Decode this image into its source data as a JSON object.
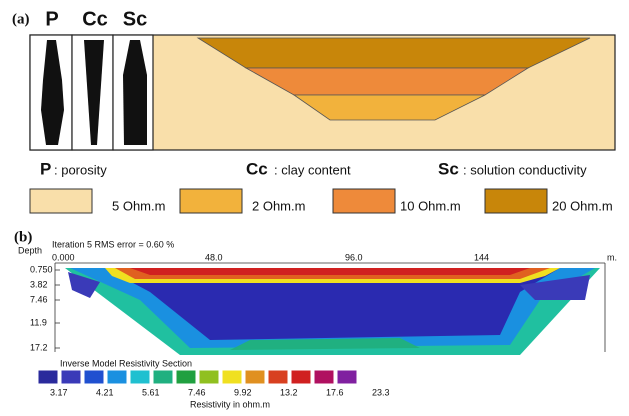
{
  "panel_a": {
    "label": "(a)",
    "columns": [
      "P",
      "Cc",
      "Sc"
    ],
    "captions": [
      {
        "symbol": "P",
        "text": ": porosity"
      },
      {
        "symbol": "Cc",
        "text": ": clay content"
      },
      {
        "symbol": "Sc",
        "text": ": solution conductivity"
      }
    ],
    "legend": [
      "5 Ohm.m",
      "2 Ohm.m",
      "10 Ohm.m",
      "20 Ohm.m"
    ]
  },
  "panel_b": {
    "label": "(b)",
    "depth_label": "Depth",
    "iteration": "Iteration 5 RMS error = 0.60 %",
    "x_ticks": [
      "0.000",
      "48.0",
      "96.0",
      "144"
    ],
    "x_unit": "m.",
    "depths": [
      "0.750",
      "3.82",
      "7.46",
      "11.9",
      "17.2"
    ],
    "section_title": "Inverse Model Resistivity Section",
    "scale_labels": [
      "3.17",
      "4.21",
      "5.61",
      "7.46",
      "9.92",
      "13.2",
      "17.6",
      "23.3"
    ],
    "scale_title": "Resistivity in ohm.m"
  }
}
